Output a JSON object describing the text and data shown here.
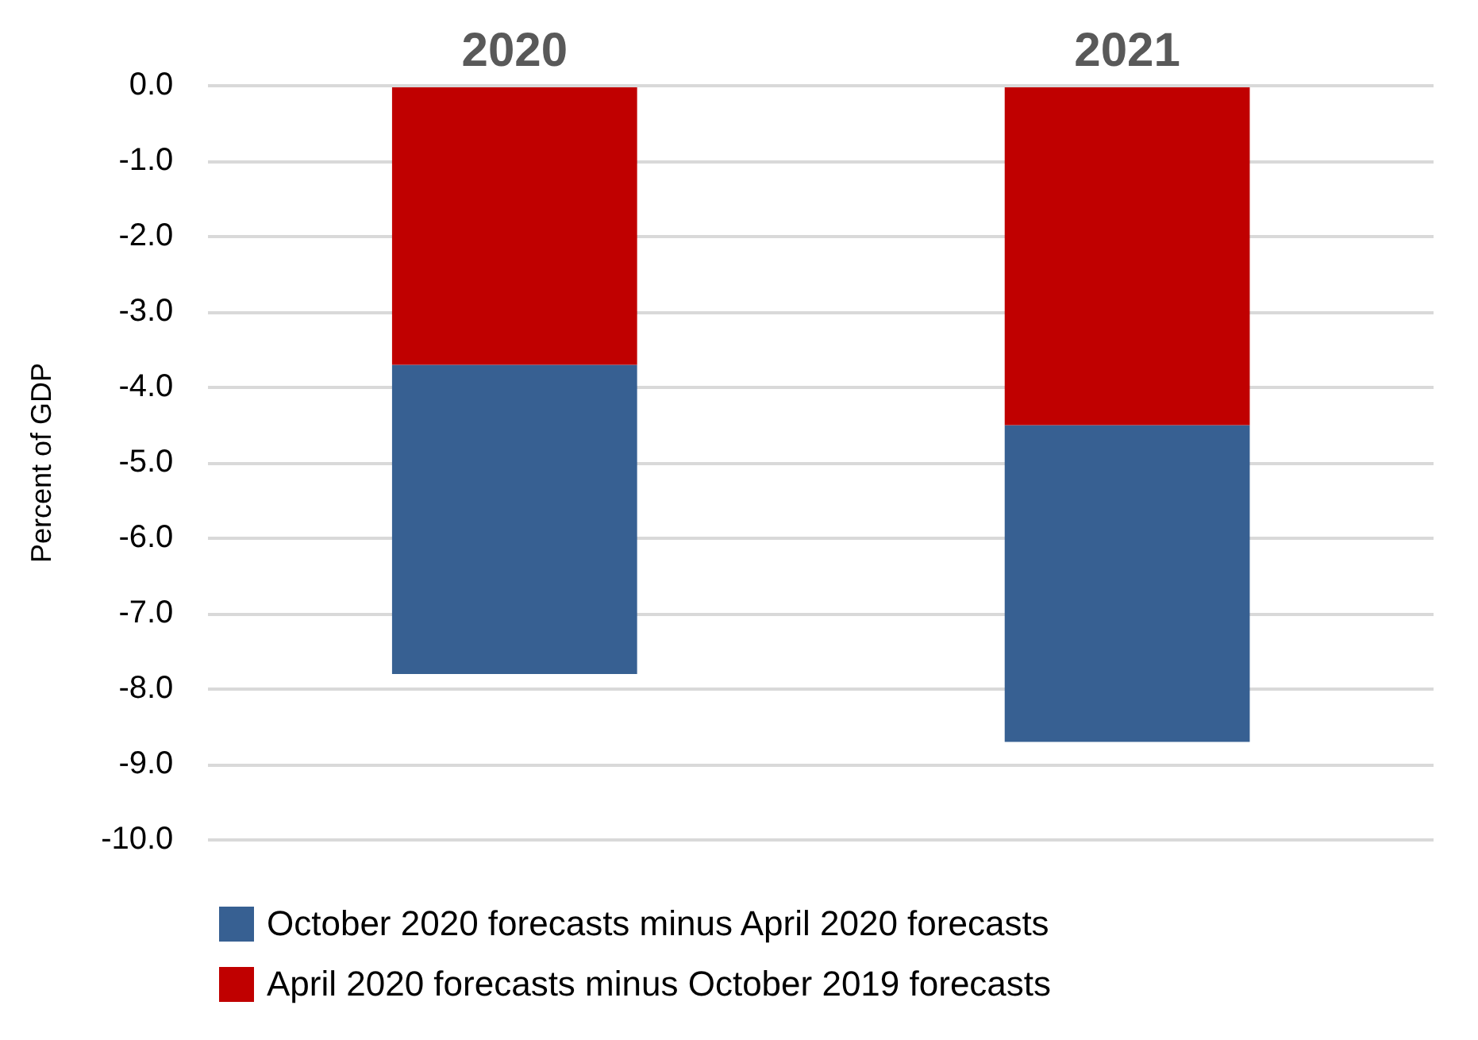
{
  "chart_data": {
    "type": "bar",
    "stacked": true,
    "categories": [
      "2020",
      "2021"
    ],
    "ylabel": "Percent of GDP",
    "series": [
      {
        "name": "April 2020 forecasts minus October 2019 forecasts",
        "color": "#c00000",
        "values": [
          -3.7,
          -4.5
        ]
      },
      {
        "name": "October 2020 forecasts minus April 2020 forecasts",
        "color": "#376092",
        "values": [
          -4.1,
          -4.2
        ]
      }
    ],
    "ylim": [
      -10,
      0
    ],
    "yticks": [
      {
        "value": 0,
        "label": "0.0"
      },
      {
        "value": -1,
        "label": "-1.0"
      },
      {
        "value": -2,
        "label": "-2.0"
      },
      {
        "value": -3,
        "label": "-3.0"
      },
      {
        "value": -4,
        "label": "-4.0"
      },
      {
        "value": -5,
        "label": "-5.0"
      },
      {
        "value": -6,
        "label": "-6.0"
      },
      {
        "value": -7,
        "label": "-7.0"
      },
      {
        "value": -8,
        "label": "-8.0"
      },
      {
        "value": -9,
        "label": "-9.0"
      },
      {
        "value": -10,
        "label": "-10.0"
      }
    ],
    "grid": "y",
    "legend": "bottom"
  }
}
